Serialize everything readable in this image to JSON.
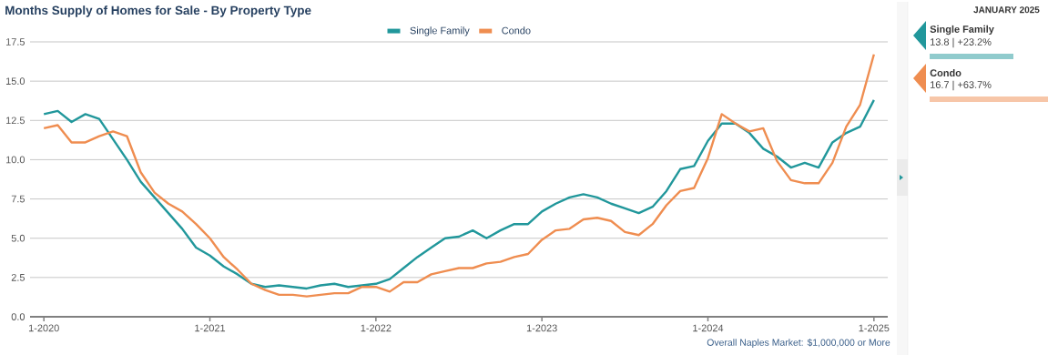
{
  "chart_data": {
    "type": "line",
    "title": "Months Supply of Homes for Sale - By Property Type",
    "x": [
      "2020-01",
      "2020-02",
      "2020-03",
      "2020-04",
      "2020-05",
      "2020-06",
      "2020-07",
      "2020-08",
      "2020-09",
      "2020-10",
      "2020-11",
      "2020-12",
      "2021-01",
      "2021-02",
      "2021-03",
      "2021-04",
      "2021-05",
      "2021-06",
      "2021-07",
      "2021-08",
      "2021-09",
      "2021-10",
      "2021-11",
      "2021-12",
      "2022-01",
      "2022-02",
      "2022-03",
      "2022-04",
      "2022-05",
      "2022-06",
      "2022-07",
      "2022-08",
      "2022-09",
      "2022-10",
      "2022-11",
      "2022-12",
      "2023-01",
      "2023-02",
      "2023-03",
      "2023-04",
      "2023-05",
      "2023-06",
      "2023-07",
      "2023-08",
      "2023-09",
      "2023-10",
      "2023-11",
      "2023-12",
      "2024-01",
      "2024-02",
      "2024-03",
      "2024-04",
      "2024-05",
      "2024-06",
      "2024-07",
      "2024-08",
      "2024-09",
      "2024-10",
      "2024-11",
      "2024-12",
      "2025-01"
    ],
    "series": [
      {
        "name": "Single Family",
        "color": "#21979b",
        "values": [
          12.9,
          13.1,
          12.4,
          12.9,
          12.6,
          11.3,
          10.0,
          8.6,
          7.6,
          6.6,
          5.6,
          4.4,
          3.9,
          3.2,
          2.7,
          2.1,
          1.9,
          2.0,
          1.9,
          1.8,
          2.0,
          2.1,
          1.9,
          2.0,
          2.1,
          2.4,
          3.1,
          3.8,
          4.4,
          5.0,
          5.1,
          5.5,
          5.0,
          5.5,
          5.9,
          5.9,
          6.7,
          7.2,
          7.6,
          7.8,
          7.6,
          7.2,
          6.9,
          6.6,
          7.0,
          8.0,
          9.4,
          9.6,
          11.2,
          12.3,
          12.3,
          11.7,
          10.7,
          10.2,
          9.5,
          9.8,
          9.5,
          11.1,
          11.7,
          12.1,
          13.8
        ]
      },
      {
        "name": "Condo",
        "color": "#ef8d50",
        "values": [
          12.0,
          12.2,
          11.1,
          11.1,
          11.5,
          11.8,
          11.5,
          9.2,
          7.9,
          7.2,
          6.7,
          5.9,
          5.0,
          3.8,
          3.0,
          2.1,
          1.7,
          1.4,
          1.4,
          1.3,
          1.4,
          1.5,
          1.5,
          1.9,
          1.9,
          1.6,
          2.2,
          2.2,
          2.7,
          2.9,
          3.1,
          3.1,
          3.4,
          3.5,
          3.8,
          4.0,
          4.9,
          5.5,
          5.6,
          6.2,
          6.3,
          6.1,
          5.4,
          5.2,
          5.9,
          7.1,
          8.0,
          8.2,
          10.1,
          12.9,
          12.3,
          11.8,
          12.0,
          9.9,
          8.7,
          8.5,
          8.5,
          9.8,
          12.1,
          13.5,
          16.7
        ]
      }
    ],
    "xlim": [
      "2019-12",
      "2025-02"
    ],
    "xticks": [
      {
        "value": "2020-01",
        "label": "1-2020"
      },
      {
        "value": "2021-01",
        "label": "1-2021"
      },
      {
        "value": "2022-01",
        "label": "1-2022"
      },
      {
        "value": "2023-01",
        "label": "1-2023"
      },
      {
        "value": "2024-01",
        "label": "1-2024"
      },
      {
        "value": "2025-01",
        "label": "1-2025"
      }
    ],
    "ylim": [
      0,
      17.5
    ],
    "yticks": [
      {
        "value": 0,
        "label": "0.0"
      },
      {
        "value": 2.5,
        "label": "2.5"
      },
      {
        "value": 5,
        "label": "5.0"
      },
      {
        "value": 7.5,
        "label": "7.5"
      },
      {
        "value": 10,
        "label": "10.0"
      },
      {
        "value": 12.5,
        "label": "12.5"
      },
      {
        "value": 15,
        "label": "15.0"
      },
      {
        "value": 17.5,
        "label": "17.5"
      }
    ],
    "grid": "y",
    "legend": "top",
    "marker": "none",
    "line_style": "solid",
    "annotations": [
      "JANUARY 2025",
      "13.8 | +23.2%",
      "16.7 | +63.7%",
      "Overall Naples Market: $1,000,000 or More"
    ]
  }
}
